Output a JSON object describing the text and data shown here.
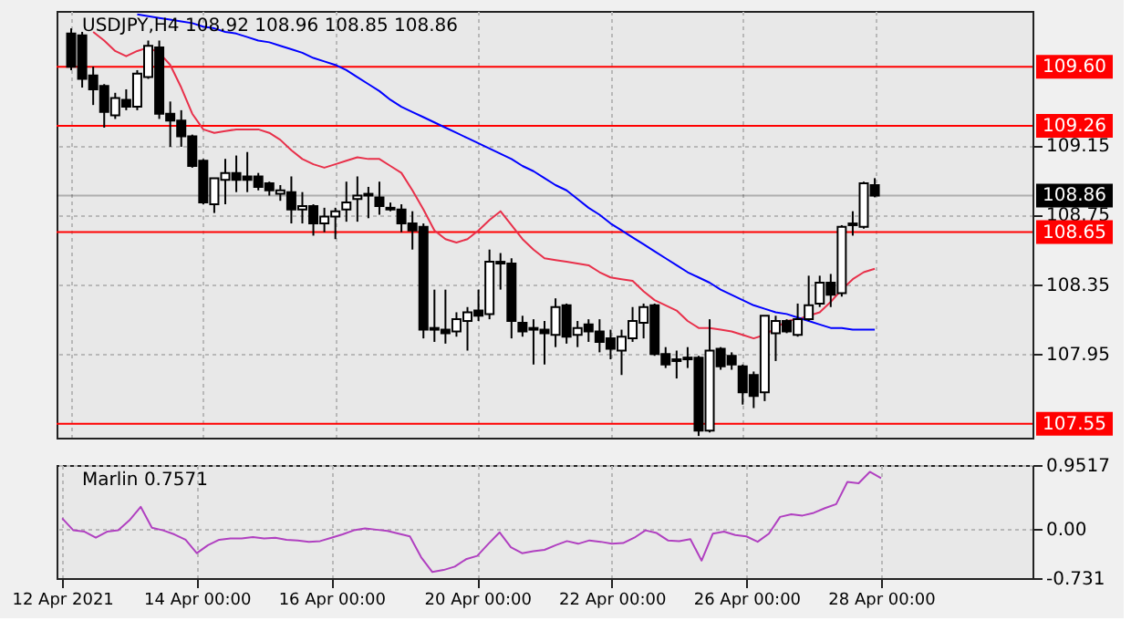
{
  "chart_data": [
    {
      "type": "candlestick",
      "title": "USDJPY,H4  108.92 108.96 108.85 108.86",
      "categories": [
        null,
        null,
        null,
        null,
        null,
        null,
        null,
        null,
        null,
        null,
        null,
        null,
        null,
        null,
        null,
        null,
        null,
        null,
        null,
        null,
        null,
        null,
        null,
        null,
        null,
        null,
        null,
        null,
        null,
        null,
        null,
        null,
        null,
        null,
        null,
        null,
        null,
        null,
        null,
        null,
        null,
        null,
        null,
        null,
        null,
        null,
        null,
        null,
        null,
        null,
        null,
        null,
        null,
        null,
        null,
        null,
        null,
        null,
        null,
        null,
        null,
        null,
        null,
        null,
        null,
        null,
        null,
        null,
        null,
        null,
        null,
        null,
        null,
        null
      ],
      "ohlc": [
        [
          109.79,
          109.82,
          109.58,
          109.6
        ],
        [
          109.78,
          109.8,
          109.48,
          109.53
        ],
        [
          109.55,
          109.6,
          109.38,
          109.47
        ],
        [
          109.49,
          109.5,
          109.25,
          109.34
        ],
        [
          109.32,
          109.45,
          109.3,
          109.42
        ],
        [
          109.41,
          109.47,
          109.35,
          109.37
        ],
        [
          109.37,
          109.58,
          109.35,
          109.56
        ],
        [
          109.54,
          109.75,
          109.53,
          109.72
        ],
        [
          109.71,
          109.75,
          109.3,
          109.33
        ],
        [
          109.33,
          109.4,
          109.14,
          109.29
        ],
        [
          109.29,
          109.35,
          109.14,
          109.2
        ],
        [
          109.2,
          109.21,
          109.02,
          109.03
        ],
        [
          109.06,
          109.07,
          108.81,
          108.82
        ],
        [
          108.81,
          108.96,
          108.76,
          108.96
        ],
        [
          108.95,
          109.07,
          108.81,
          108.99
        ],
        [
          108.99,
          109.09,
          108.88,
          108.95
        ],
        [
          108.97,
          109.11,
          108.88,
          108.95
        ],
        [
          108.97,
          108.99,
          108.89,
          108.91
        ],
        [
          108.93,
          108.94,
          108.86,
          108.89
        ],
        [
          108.87,
          108.92,
          108.83,
          108.89
        ],
        [
          108.88,
          108.97,
          108.7,
          108.78
        ],
        [
          108.78,
          108.88,
          108.7,
          108.8
        ],
        [
          108.8,
          108.81,
          108.63,
          108.7
        ],
        [
          108.7,
          108.79,
          108.65,
          108.74
        ],
        [
          108.74,
          108.79,
          108.61,
          108.77
        ],
        [
          108.78,
          108.94,
          108.71,
          108.82
        ],
        [
          108.84,
          108.97,
          108.71,
          108.86
        ],
        [
          108.87,
          108.91,
          108.73,
          108.86
        ],
        [
          108.85,
          108.94,
          108.75,
          108.8
        ],
        [
          108.79,
          108.82,
          108.77,
          108.78
        ],
        [
          108.78,
          108.81,
          108.65,
          108.7
        ],
        [
          108.7,
          108.77,
          108.55,
          108.66
        ],
        [
          108.68,
          108.7,
          108.04,
          108.09
        ],
        [
          108.1,
          108.32,
          108.02,
          108.09
        ],
        [
          108.09,
          108.32,
          108.01,
          108.07
        ],
        [
          108.08,
          108.19,
          108.05,
          108.15
        ],
        [
          108.14,
          108.22,
          107.97,
          108.19
        ],
        [
          108.2,
          108.32,
          108.14,
          108.17
        ],
        [
          108.18,
          108.55,
          108.15,
          108.48
        ],
        [
          108.48,
          108.53,
          108.32,
          108.47
        ],
        [
          108.47,
          108.5,
          108.04,
          108.14
        ],
        [
          108.13,
          108.17,
          108.05,
          108.08
        ],
        [
          108.1,
          108.15,
          107.89,
          108.09
        ],
        [
          108.09,
          108.14,
          107.89,
          108.07
        ],
        [
          108.06,
          108.27,
          107.99,
          108.22
        ],
        [
          108.23,
          108.24,
          108.01,
          108.05
        ],
        [
          108.06,
          108.14,
          107.99,
          108.1
        ],
        [
          108.12,
          108.15,
          108.02,
          108.08
        ],
        [
          108.08,
          108.15,
          107.96,
          108.02
        ],
        [
          108.04,
          108.09,
          107.92,
          107.98
        ],
        [
          107.97,
          108.09,
          107.83,
          108.05
        ],
        [
          108.04,
          108.22,
          108.02,
          108.14
        ],
        [
          108.13,
          108.24,
          108.04,
          108.22
        ],
        [
          108.23,
          108.24,
          107.94,
          107.95
        ],
        [
          107.95,
          107.99,
          107.87,
          107.89
        ],
        [
          107.92,
          107.97,
          107.81,
          107.91
        ],
        [
          107.93,
          107.99,
          107.87,
          107.92
        ],
        [
          107.93,
          107.94,
          107.48,
          107.51
        ],
        [
          107.51,
          108.15,
          107.5,
          107.97
        ],
        [
          107.98,
          107.99,
          107.86,
          107.88
        ],
        [
          107.94,
          107.96,
          107.86,
          107.89
        ],
        [
          107.88,
          107.89,
          107.66,
          107.73
        ],
        [
          107.83,
          107.85,
          107.64,
          107.71
        ],
        [
          107.73,
          108.17,
          107.68,
          108.17
        ],
        [
          108.07,
          108.17,
          107.91,
          108.14
        ],
        [
          108.14,
          108.15,
          108.07,
          108.08
        ],
        [
          108.06,
          108.24,
          108.05,
          108.15
        ],
        [
          108.15,
          108.4,
          108.14,
          108.23
        ],
        [
          108.24,
          108.4,
          108.22,
          108.36
        ],
        [
          108.36,
          108.41,
          108.22,
          108.29
        ],
        [
          108.3,
          108.69,
          108.28,
          108.68
        ],
        [
          108.69,
          108.77,
          108.63,
          108.7
        ],
        [
          108.68,
          108.94,
          108.67,
          108.93
        ],
        [
          108.92,
          108.96,
          108.85,
          108.86
        ]
      ],
      "series": [
        {
          "type": "line",
          "color": "#e8304a",
          "values": [
            null,
            null,
            109.8,
            109.75,
            109.69,
            109.66,
            109.69,
            109.71,
            109.68,
            109.61,
            109.48,
            109.33,
            109.24,
            109.22,
            109.23,
            109.24,
            109.24,
            109.24,
            109.22,
            109.18,
            109.12,
            109.07,
            109.04,
            109.02,
            109.04,
            109.06,
            109.08,
            109.07,
            109.07,
            109.03,
            108.99,
            108.89,
            108.78,
            108.66,
            108.61,
            108.59,
            108.61,
            108.66,
            108.72,
            108.77,
            108.69,
            108.61,
            108.55,
            108.5,
            108.49,
            108.48,
            108.47,
            108.46,
            108.42,
            108.39,
            108.38,
            108.37,
            108.31,
            108.26,
            108.23,
            108.2,
            108.14,
            108.1,
            108.1,
            108.09,
            108.08,
            108.06,
            108.04,
            108.06,
            108.1,
            108.14,
            108.15,
            108.17,
            108.19,
            108.25,
            108.32,
            108.38,
            108.42,
            108.44
          ]
        },
        {
          "type": "line",
          "color": "#0000ff",
          "values": [
            null,
            null,
            null,
            null,
            null,
            null,
            109.9,
            109.89,
            109.88,
            109.87,
            109.86,
            109.85,
            109.83,
            109.82,
            109.8,
            109.79,
            109.77,
            109.75,
            109.74,
            109.72,
            109.7,
            109.68,
            109.65,
            109.63,
            109.61,
            109.58,
            109.54,
            109.5,
            109.46,
            109.41,
            109.37,
            109.34,
            109.31,
            109.28,
            109.25,
            109.22,
            109.19,
            109.16,
            109.13,
            109.1,
            109.07,
            109.03,
            109.0,
            108.96,
            108.92,
            108.89,
            108.84,
            108.79,
            108.75,
            108.7,
            108.66,
            108.62,
            108.58,
            108.54,
            108.5,
            108.46,
            108.42,
            108.39,
            108.36,
            108.32,
            108.29,
            108.26,
            108.23,
            108.21,
            108.19,
            108.18,
            108.16,
            108.14,
            108.12,
            108.1,
            108.1,
            108.09,
            108.09,
            108.09
          ]
        }
      ],
      "ylim": [
        107.47,
        109.92
      ],
      "yticks": [
        109.15,
        108.75,
        108.35,
        107.95
      ],
      "ref_lines": [
        {
          "axis": "y",
          "value": 109.6,
          "label": "109.60",
          "color": "#ff0000"
        },
        {
          "axis": "y",
          "value": 109.26,
          "label": "109.26",
          "color": "#ff0000"
        },
        {
          "axis": "y",
          "value": 108.86,
          "label": "108.86",
          "color": "#000000"
        },
        {
          "axis": "y",
          "value": 108.65,
          "label": "108.65",
          "color": "#ff0000"
        },
        {
          "axis": "y",
          "value": 107.55,
          "label": "107.55",
          "color": "#ff0000"
        }
      ],
      "grid": true,
      "tick_labels": "y"
    },
    {
      "type": "line",
      "title": "Marlin 0.7571",
      "categories": [
        "12 Apr 2021",
        null,
        null,
        null,
        null,
        null,
        null,
        null,
        null,
        null,
        null,
        null,
        "14 Apr 00:00",
        null,
        null,
        null,
        null,
        null,
        null,
        null,
        null,
        null,
        null,
        null,
        "16 Apr 00:00",
        null,
        null,
        null,
        null,
        null,
        null,
        null,
        null,
        null,
        null,
        null,
        null,
        "20 Apr 00:00",
        null,
        null,
        null,
        null,
        null,
        null,
        null,
        null,
        null,
        null,
        null,
        "22 Apr 00:00",
        null,
        null,
        null,
        null,
        null,
        null,
        null,
        null,
        null,
        null,
        null,
        "26 Apr 00:00",
        null,
        null,
        null,
        null,
        null,
        null,
        null,
        null,
        null,
        null,
        null,
        "28 Apr 00:00"
      ],
      "series": [
        {
          "color": "#b040c0",
          "values": [
            0.16,
            -0.02,
            -0.04,
            -0.13,
            -0.04,
            -0.02,
            0.13,
            0.33,
            0.02,
            -0.02,
            -0.08,
            -0.16,
            -0.36,
            -0.24,
            -0.16,
            -0.14,
            -0.14,
            -0.12,
            -0.14,
            -0.13,
            -0.16,
            -0.17,
            -0.19,
            -0.18,
            -0.13,
            -0.08,
            -0.02,
            0.01,
            -0.01,
            -0.03,
            -0.07,
            -0.11,
            -0.42,
            -0.64,
            -0.61,
            -0.56,
            -0.45,
            -0.4,
            -0.22,
            -0.05,
            -0.27,
            -0.36,
            -0.33,
            -0.31,
            -0.24,
            -0.18,
            -0.22,
            -0.17,
            -0.19,
            -0.22,
            -0.21,
            -0.13,
            -0.02,
            -0.06,
            -0.17,
            -0.18,
            -0.15,
            -0.47,
            -0.07,
            -0.04,
            -0.09,
            -0.11,
            -0.19,
            -0.07,
            0.18,
            0.22,
            0.2,
            0.24,
            0.31,
            0.37,
            0.7,
            0.68,
            0.85,
            0.7571
          ]
        }
      ],
      "ylim": [
        -0.731,
        0.9517
      ],
      "yticks": [
        0.9517,
        {
          "value": 0,
          "label": "0.00"
        },
        -0.731
      ],
      "grid": true
    }
  ]
}
